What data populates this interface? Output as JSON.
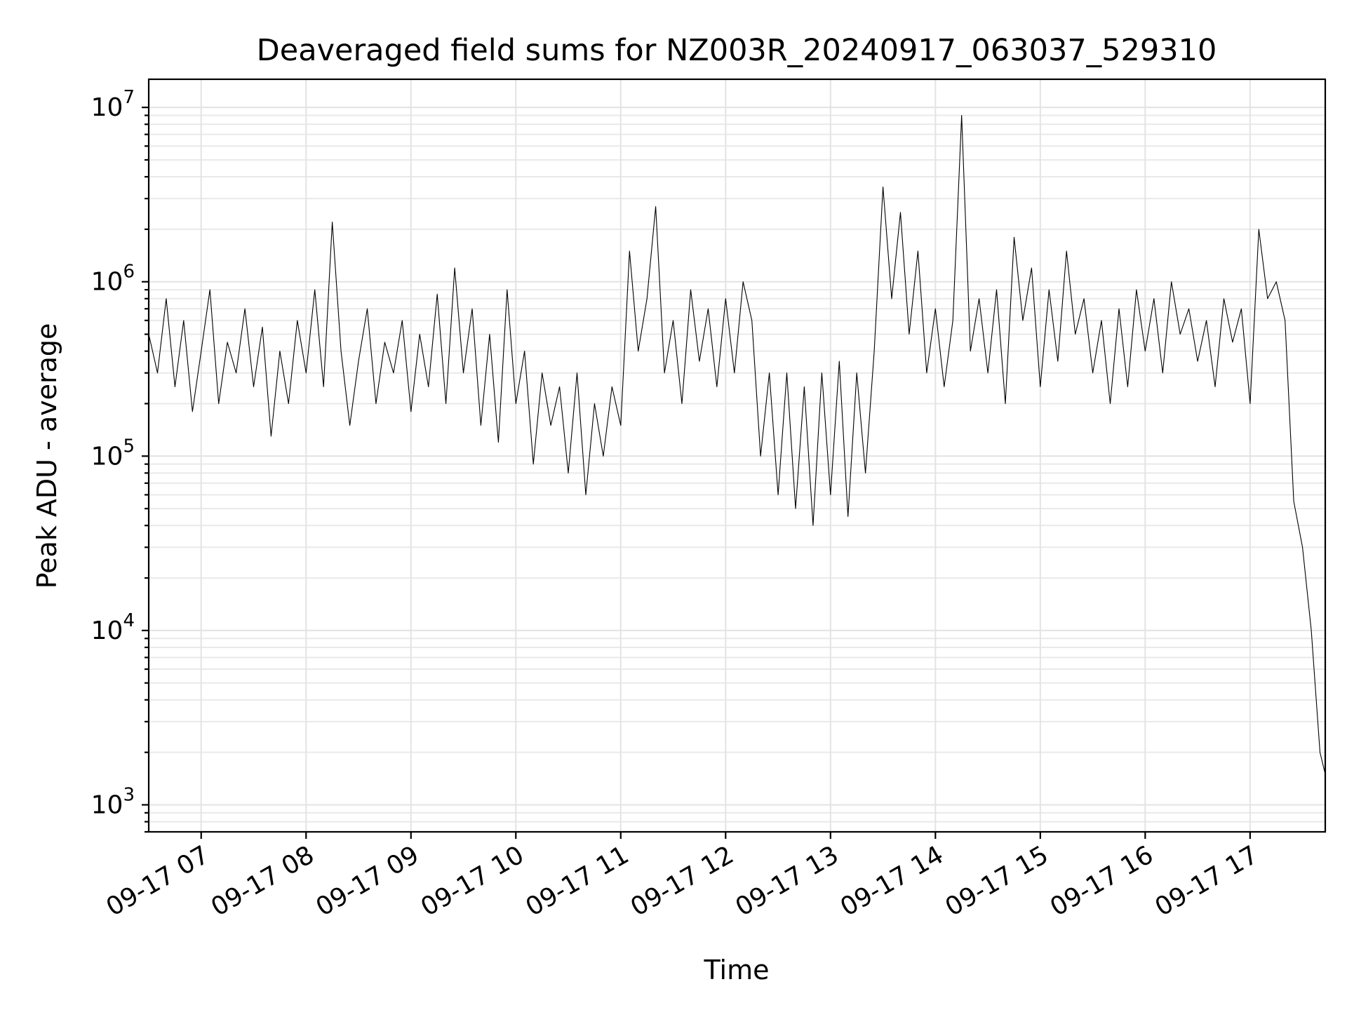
{
  "chart_data": {
    "type": "line",
    "title": "Deaveraged field sums for NZ003R_20240917_063037_529310",
    "xlabel": "Time",
    "ylabel": "Peak ADU - average",
    "y_scale": "log",
    "ylim": [
      700,
      14500000
    ],
    "xlim": [
      "2024-09-17 06:30",
      "2024-09-17 17:43"
    ],
    "grid": true,
    "legend": "none",
    "line_color": "#000000",
    "y_ticks": [
      {
        "value": 1000,
        "base": "10",
        "exp": "3"
      },
      {
        "value": 10000,
        "base": "10",
        "exp": "4"
      },
      {
        "value": 100000,
        "base": "10",
        "exp": "5"
      },
      {
        "value": 1000000,
        "base": "10",
        "exp": "6"
      },
      {
        "value": 10000000,
        "base": "10",
        "exp": "7"
      }
    ],
    "x_ticks": [
      {
        "value": "2024-09-17 07:00",
        "label": "09-17 07"
      },
      {
        "value": "2024-09-17 08:00",
        "label": "09-17 08"
      },
      {
        "value": "2024-09-17 09:00",
        "label": "09-17 09"
      },
      {
        "value": "2024-09-17 10:00",
        "label": "09-17 10"
      },
      {
        "value": "2024-09-17 11:00",
        "label": "09-17 11"
      },
      {
        "value": "2024-09-17 12:00",
        "label": "09-17 12"
      },
      {
        "value": "2024-09-17 13:00",
        "label": "09-17 13"
      },
      {
        "value": "2024-09-17 14:00",
        "label": "09-17 14"
      },
      {
        "value": "2024-09-17 15:00",
        "label": "09-17 15"
      },
      {
        "value": "2024-09-17 16:00",
        "label": "09-17 16"
      },
      {
        "value": "2024-09-17 17:00",
        "label": "09-17 17"
      }
    ],
    "series": [
      {
        "x": [
          "2024-09-17 06:30",
          "2024-09-17 06:35",
          "2024-09-17 06:40",
          "2024-09-17 06:45",
          "2024-09-17 06:50",
          "2024-09-17 06:55",
          "2024-09-17 07:00",
          "2024-09-17 07:05",
          "2024-09-17 07:10",
          "2024-09-17 07:15",
          "2024-09-17 07:20",
          "2024-09-17 07:25",
          "2024-09-17 07:30",
          "2024-09-17 07:35",
          "2024-09-17 07:40",
          "2024-09-17 07:45",
          "2024-09-17 07:50",
          "2024-09-17 07:55",
          "2024-09-17 08:00",
          "2024-09-17 08:05",
          "2024-09-17 08:10",
          "2024-09-17 08:15",
          "2024-09-17 08:20",
          "2024-09-17 08:25",
          "2024-09-17 08:30",
          "2024-09-17 08:35",
          "2024-09-17 08:40",
          "2024-09-17 08:45",
          "2024-09-17 08:50",
          "2024-09-17 08:55",
          "2024-09-17 09:00",
          "2024-09-17 09:05",
          "2024-09-17 09:10",
          "2024-09-17 09:15",
          "2024-09-17 09:20",
          "2024-09-17 09:25",
          "2024-09-17 09:30",
          "2024-09-17 09:35",
          "2024-09-17 09:40",
          "2024-09-17 09:45",
          "2024-09-17 09:50",
          "2024-09-17 09:55",
          "2024-09-17 10:00",
          "2024-09-17 10:05",
          "2024-09-17 10:10",
          "2024-09-17 10:15",
          "2024-09-17 10:20",
          "2024-09-17 10:25",
          "2024-09-17 10:30",
          "2024-09-17 10:35",
          "2024-09-17 10:40",
          "2024-09-17 10:45",
          "2024-09-17 10:50",
          "2024-09-17 10:55",
          "2024-09-17 11:00",
          "2024-09-17 11:05",
          "2024-09-17 11:10",
          "2024-09-17 11:15",
          "2024-09-17 11:20",
          "2024-09-17 11:25",
          "2024-09-17 11:30",
          "2024-09-17 11:35",
          "2024-09-17 11:40",
          "2024-09-17 11:45",
          "2024-09-17 11:50",
          "2024-09-17 11:55",
          "2024-09-17 12:00",
          "2024-09-17 12:05",
          "2024-09-17 12:10",
          "2024-09-17 12:15",
          "2024-09-17 12:20",
          "2024-09-17 12:25",
          "2024-09-17 12:30",
          "2024-09-17 12:35",
          "2024-09-17 12:40",
          "2024-09-17 12:45",
          "2024-09-17 12:50",
          "2024-09-17 12:55",
          "2024-09-17 13:00",
          "2024-09-17 13:05",
          "2024-09-17 13:10",
          "2024-09-17 13:15",
          "2024-09-17 13:20",
          "2024-09-17 13:25",
          "2024-09-17 13:30",
          "2024-09-17 13:35",
          "2024-09-17 13:40",
          "2024-09-17 13:45",
          "2024-09-17 13:50",
          "2024-09-17 13:55",
          "2024-09-17 14:00",
          "2024-09-17 14:05",
          "2024-09-17 14:10",
          "2024-09-17 14:15",
          "2024-09-17 14:20",
          "2024-09-17 14:25",
          "2024-09-17 14:30",
          "2024-09-17 14:35",
          "2024-09-17 14:40",
          "2024-09-17 14:45",
          "2024-09-17 14:50",
          "2024-09-17 14:55",
          "2024-09-17 15:00",
          "2024-09-17 15:05",
          "2024-09-17 15:10",
          "2024-09-17 15:15",
          "2024-09-17 15:20",
          "2024-09-17 15:25",
          "2024-09-17 15:30",
          "2024-09-17 15:35",
          "2024-09-17 15:40",
          "2024-09-17 15:45",
          "2024-09-17 15:50",
          "2024-09-17 15:55",
          "2024-09-17 16:00",
          "2024-09-17 16:05",
          "2024-09-17 16:10",
          "2024-09-17 16:15",
          "2024-09-17 16:20",
          "2024-09-17 16:25",
          "2024-09-17 16:30",
          "2024-09-17 16:35",
          "2024-09-17 16:40",
          "2024-09-17 16:45",
          "2024-09-17 16:50",
          "2024-09-17 16:55",
          "2024-09-17 17:00",
          "2024-09-17 17:05",
          "2024-09-17 17:10",
          "2024-09-17 17:15",
          "2024-09-17 17:20",
          "2024-09-17 17:25",
          "2024-09-17 17:30",
          "2024-09-17 17:35",
          "2024-09-17 17:40",
          "2024-09-17 17:43"
        ],
        "y": [
          500000,
          300000,
          800000,
          250000,
          600000,
          180000,
          400000,
          900000,
          200000,
          450000,
          300000,
          700000,
          250000,
          550000,
          130000,
          400000,
          200000,
          600000,
          300000,
          900000,
          250000,
          2200000,
          400000,
          150000,
          350000,
          700000,
          200000,
          450000,
          300000,
          600000,
          180000,
          500000,
          250000,
          850000,
          200000,
          1200000,
          300000,
          700000,
          150000,
          500000,
          120000,
          900000,
          200000,
          400000,
          90000,
          300000,
          150000,
          250000,
          80000,
          300000,
          60000,
          200000,
          100000,
          250000,
          150000,
          1500000,
          400000,
          800000,
          2700000,
          300000,
          600000,
          200000,
          900000,
          350000,
          700000,
          250000,
          800000,
          300000,
          1000000,
          600000,
          100000,
          300000,
          60000,
          300000,
          50000,
          250000,
          40000,
          300000,
          60000,
          350000,
          45000,
          300000,
          80000,
          400000,
          3500000,
          800000,
          2500000,
          500000,
          1500000,
          300000,
          700000,
          250000,
          600000,
          9000000,
          400000,
          800000,
          300000,
          900000,
          200000,
          1800000,
          600000,
          1200000,
          250000,
          900000,
          350000,
          1500000,
          500000,
          800000,
          300000,
          600000,
          200000,
          700000,
          250000,
          900000,
          400000,
          800000,
          300000,
          1000000,
          500000,
          700000,
          350000,
          600000,
          250000,
          800000,
          450000,
          700000,
          200000,
          2000000,
          800000,
          1000000,
          600000,
          55000,
          30000,
          10000,
          2000,
          1500
        ]
      }
    ]
  }
}
